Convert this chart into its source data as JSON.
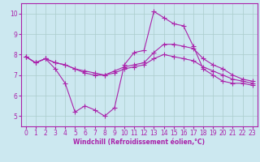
{
  "background_color": "#cce8f0",
  "grid_color": "#aacccc",
  "line_color": "#aa22aa",
  "marker": "+",
  "markersize": 4,
  "linewidth": 0.8,
  "xlabel": "Windchill (Refroidissement éolien,°C)",
  "xlabel_fontsize": 5.5,
  "tick_fontsize": 5.5,
  "xlim": [
    -0.5,
    23.5
  ],
  "ylim": [
    4.5,
    10.5
  ],
  "yticks": [
    5,
    6,
    7,
    8,
    9,
    10
  ],
  "xticks": [
    0,
    1,
    2,
    3,
    4,
    5,
    6,
    7,
    8,
    9,
    10,
    11,
    12,
    13,
    14,
    15,
    16,
    17,
    18,
    19,
    20,
    21,
    22,
    23
  ],
  "series": [
    [
      7.9,
      7.6,
      7.8,
      7.3,
      6.6,
      5.2,
      5.5,
      5.3,
      5.0,
      5.4,
      7.5,
      8.1,
      8.2,
      10.1,
      9.8,
      9.5,
      9.4,
      8.4,
      7.3,
      7.0,
      6.7,
      6.6,
      6.6,
      6.5
    ],
    [
      7.9,
      7.6,
      7.8,
      7.6,
      7.5,
      7.3,
      7.1,
      7.0,
      7.0,
      7.2,
      7.4,
      7.5,
      7.6,
      8.1,
      8.5,
      8.5,
      8.4,
      8.3,
      7.8,
      7.5,
      7.3,
      7.0,
      6.8,
      6.7
    ],
    [
      7.9,
      7.6,
      7.8,
      7.6,
      7.5,
      7.3,
      7.2,
      7.1,
      7.0,
      7.1,
      7.3,
      7.4,
      7.5,
      7.8,
      8.0,
      7.9,
      7.8,
      7.7,
      7.4,
      7.2,
      7.0,
      6.8,
      6.7,
      6.6
    ]
  ]
}
